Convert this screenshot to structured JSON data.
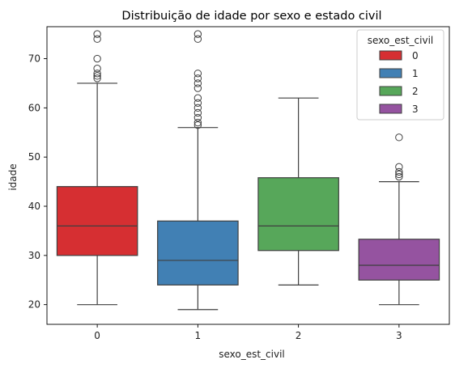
{
  "chart_data": {
    "type": "boxplot",
    "title": "Distribuição de idade por sexo e estado civil",
    "xlabel": "sexo_est_civil",
    "ylabel": "idade",
    "ylim": [
      16,
      76.5
    ],
    "yticks": [
      20,
      30,
      40,
      50,
      60,
      70
    ],
    "categories": [
      "0",
      "1",
      "2",
      "3"
    ],
    "grid": false,
    "legend": {
      "title": "sexo_est_civil",
      "placement": "top-right",
      "entries": [
        "0",
        "1",
        "2",
        "3"
      ]
    },
    "series": [
      {
        "category": "0",
        "color": "#d62f32",
        "whisker_low": 20,
        "q1": 30,
        "median": 36,
        "q3": 44,
        "whisker_high": 65,
        "outliers": [
          66,
          66.5,
          67,
          68,
          70,
          74,
          75
        ]
      },
      {
        "category": "1",
        "color": "#4180b4",
        "whisker_low": 19,
        "q1": 24,
        "median": 29,
        "q3": 37,
        "whisker_high": 56,
        "outliers": [
          56.5,
          57,
          58,
          59,
          60,
          61,
          62,
          64,
          65,
          66,
          67,
          74,
          75
        ]
      },
      {
        "category": "2",
        "color": "#57a75a",
        "whisker_low": 24,
        "q1": 31,
        "median": 36,
        "q3": 45.8,
        "whisker_high": 62,
        "outliers": []
      },
      {
        "category": "3",
        "color": "#9553a0",
        "whisker_low": 20,
        "q1": 25,
        "median": 28,
        "q3": 33.3,
        "whisker_high": 45,
        "outliers": [
          46,
          46.5,
          47,
          48,
          54
        ]
      }
    ]
  }
}
